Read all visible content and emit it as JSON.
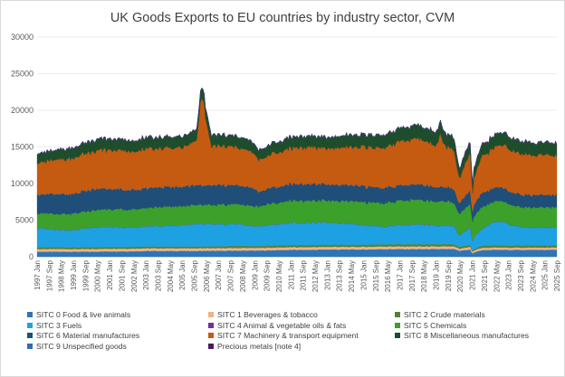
{
  "chart_data": {
    "type": "area",
    "stacked": true,
    "title": "UK Goods Exports to EU countries by industry sector, CVM",
    "xlabel": "",
    "ylabel": "",
    "ylim": [
      0,
      30000
    ],
    "yticks": [
      0,
      5000,
      10000,
      15000,
      20000,
      25000,
      30000
    ],
    "grid": true,
    "legend_position": "bottom",
    "x_start_year": 1997,
    "x_end_year": 2025,
    "xtick_labels": [
      "1997 Jan",
      "1997 Sep",
      "1998 May",
      "1999 Jan",
      "1999 Sep",
      "2000 May",
      "2001 Jan",
      "2001 Sep",
      "2002 May",
      "2003 Jan",
      "2003 Sep",
      "2004 May",
      "2005 Jan",
      "2005 Sep",
      "2006 May",
      "2007 Jan",
      "2007 Sep",
      "2008 May",
      "2009 Jan",
      "2009 Sep",
      "2010 May",
      "2011 Jan",
      "2011 Sep",
      "2012 May",
      "2013 Jan",
      "2013 Sep",
      "2014 May",
      "2015 Jan",
      "2015 Sep",
      "2016 May",
      "2017 Jan",
      "2017 Sep",
      "2018 May",
      "2019 Jan",
      "2019 Sep",
      "2020 May",
      "2021 Jan",
      "2021 Sep",
      "2022 May",
      "2023 Jan",
      "2023 Sep",
      "2024 May",
      "2025 Jan",
      "2025 Sep"
    ],
    "time_points": [
      1997.0,
      1998.0,
      1999.0,
      2000.0,
      2001.0,
      2002.0,
      2003.0,
      2004.0,
      2005.0,
      2005.8,
      2006.1,
      2006.3,
      2006.6,
      2007.0,
      2008.0,
      2008.9,
      2009.2,
      2010.0,
      2011.0,
      2012.0,
      2013.0,
      2014.0,
      2015.0,
      2016.0,
      2017.0,
      2018.0,
      2019.0,
      2019.25,
      2019.5,
      2020.0,
      2020.3,
      2020.5,
      2020.9,
      2021.0,
      2021.1,
      2021.5,
      2022.0,
      2022.6,
      2023.0,
      2024.0,
      2025.0,
      2025.7
    ],
    "series": [
      {
        "name": "SITC 0 Food & live animals",
        "color": "#2e75b6",
        "values": [
          700,
          700,
          700,
          700,
          750,
          750,
          800,
          800,
          800,
          800,
          820,
          820,
          820,
          820,
          850,
          850,
          850,
          900,
          950,
          950,
          1000,
          1000,
          1000,
          1050,
          1050,
          1050,
          1050,
          1050,
          1050,
          1050,
          800,
          900,
          1000,
          400,
          600,
          900,
          950,
          950,
          950,
          950,
          950,
          950
        ]
      },
      {
        "name": "SITC 1 Beverages & tobacco",
        "color": "#f4b183",
        "values": [
          350,
          350,
          350,
          350,
          350,
          350,
          350,
          350,
          350,
          350,
          350,
          350,
          350,
          350,
          350,
          350,
          350,
          350,
          350,
          350,
          350,
          350,
          350,
          350,
          350,
          350,
          350,
          350,
          350,
          350,
          250,
          300,
          350,
          200,
          250,
          300,
          300,
          300,
          300,
          300,
          300,
          300
        ]
      },
      {
        "name": "SITC 2 Crude materials",
        "color": "#548235",
        "values": [
          250,
          250,
          250,
          250,
          250,
          250,
          250,
          250,
          250,
          250,
          250,
          250,
          250,
          250,
          300,
          250,
          250,
          300,
          300,
          300,
          300,
          300,
          300,
          300,
          300,
          300,
          300,
          300,
          300,
          300,
          250,
          300,
          300,
          150,
          200,
          300,
          300,
          300,
          300,
          300,
          300,
          300
        ]
      },
      {
        "name": "SITC 3 Fuels",
        "color": "#1ea1e3",
        "values": [
          2600,
          2400,
          2300,
          2700,
          2700,
          2600,
          2700,
          2800,
          2900,
          3000,
          3000,
          3000,
          3000,
          2900,
          3000,
          2700,
          2700,
          2800,
          3000,
          3000,
          3000,
          2900,
          2700,
          2400,
          2600,
          2700,
          2500,
          2500,
          2600,
          2400,
          1500,
          1800,
          2300,
          1200,
          1600,
          2200,
          3000,
          3300,
          2800,
          2400,
          2400,
          2400
        ]
      },
      {
        "name": "SITC 4 Animal & vegetable oils & fats",
        "color": "#7030a0",
        "values": [
          30,
          30,
          30,
          30,
          30,
          30,
          30,
          30,
          30,
          30,
          30,
          30,
          30,
          30,
          30,
          30,
          30,
          30,
          30,
          30,
          30,
          30,
          30,
          30,
          30,
          30,
          30,
          30,
          30,
          30,
          30,
          30,
          30,
          30,
          30,
          30,
          30,
          30,
          30,
          30,
          30,
          30
        ]
      },
      {
        "name": "SITC 5 Chemicals",
        "color": "#3ca12a",
        "values": [
          2000,
          2100,
          2200,
          2300,
          2400,
          2400,
          2500,
          2600,
          2600,
          2600,
          2600,
          2600,
          2600,
          2600,
          2700,
          2700,
          2700,
          2900,
          3000,
          3000,
          3000,
          3000,
          3100,
          3200,
          3300,
          3300,
          3300,
          3300,
          3300,
          3200,
          2900,
          3000,
          3200,
          2600,
          2800,
          3000,
          2800,
          2800,
          2700,
          2700,
          2700,
          2700
        ]
      },
      {
        "name": "SITC 6 Material manufactures",
        "color": "#1f4e79",
        "values": [
          2600,
          2700,
          2700,
          2900,
          2800,
          2700,
          2700,
          2700,
          2700,
          2700,
          2700,
          2700,
          2700,
          2700,
          2600,
          2500,
          2000,
          2200,
          2300,
          2300,
          2200,
          2200,
          2200,
          2100,
          2100,
          2100,
          2000,
          2000,
          2000,
          1900,
          1500,
          1700,
          1900,
          1300,
          1700,
          1900,
          1900,
          1900,
          1800,
          1700,
          1700,
          1700
        ]
      },
      {
        "name": "SITC 7 Machinery & transport equipment",
        "color": "#c55a11",
        "values": [
          4300,
          4600,
          4900,
          5200,
          5300,
          5300,
          5300,
          5300,
          5300,
          6000,
          13000,
          9000,
          5300,
          5300,
          5200,
          4800,
          4300,
          4600,
          4900,
          5000,
          4900,
          5100,
          5300,
          5400,
          6000,
          6200,
          5700,
          7000,
          5500,
          5200,
          3200,
          4000,
          5100,
          2200,
          3600,
          5000,
          5300,
          5800,
          5700,
          5500,
          5400,
          5300
        ]
      },
      {
        "name": "SITC 8 Miscellaneous manufactures",
        "color": "#1e4d2b",
        "values": [
          1300,
          1300,
          1400,
          1500,
          1500,
          1500,
          1500,
          1500,
          1500,
          1500,
          1500,
          1500,
          1500,
          1500,
          1500,
          1400,
          1300,
          1400,
          1500,
          1500,
          1500,
          1600,
          1700,
          1700,
          1800,
          1800,
          1800,
          1800,
          1800,
          1700,
          1300,
          1500,
          1600,
          1100,
          1400,
          1600,
          1600,
          1700,
          1700,
          1700,
          1700,
          1700
        ]
      },
      {
        "name": "SITC 9 Unspecified goods",
        "color": "#2e6db4",
        "values": [
          40,
          40,
          40,
          40,
          40,
          40,
          40,
          40,
          40,
          40,
          40,
          40,
          40,
          40,
          40,
          40,
          40,
          40,
          40,
          40,
          40,
          40,
          40,
          40,
          40,
          40,
          40,
          40,
          40,
          40,
          40,
          40,
          40,
          40,
          40,
          40,
          40,
          40,
          40,
          40,
          40,
          40
        ]
      },
      {
        "name": "Precious metals [note 4]",
        "color": "#4b1c5e",
        "values": [
          20,
          20,
          20,
          20,
          20,
          20,
          20,
          20,
          20,
          20,
          20,
          20,
          20,
          20,
          20,
          20,
          20,
          20,
          20,
          20,
          20,
          20,
          20,
          20,
          20,
          20,
          20,
          20,
          20,
          20,
          20,
          20,
          20,
          20,
          20,
          20,
          20,
          20,
          20,
          20,
          20,
          20
        ]
      }
    ]
  }
}
